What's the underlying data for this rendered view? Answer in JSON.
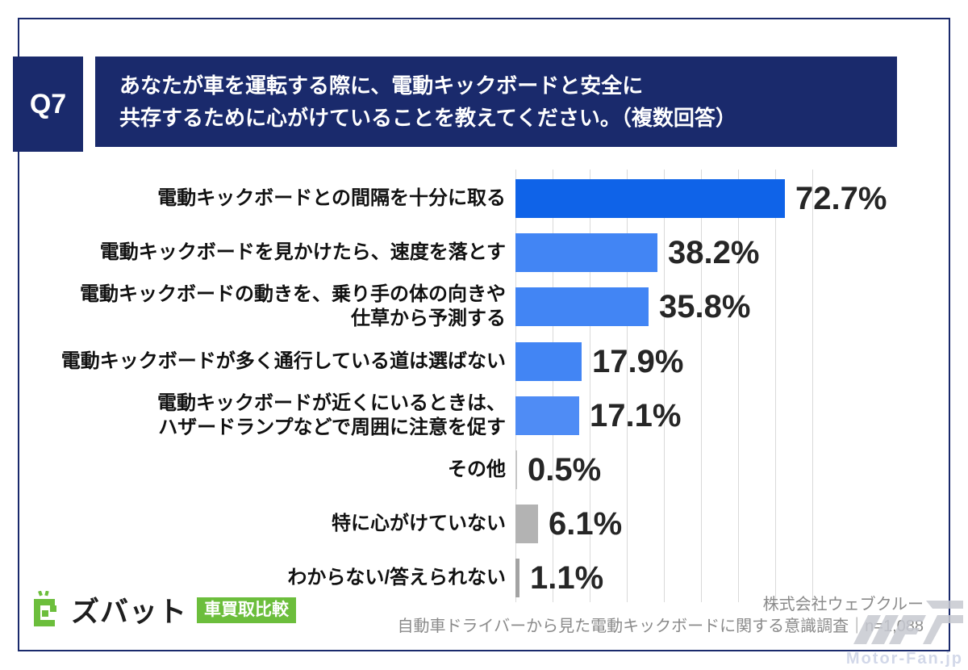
{
  "page": {
    "background": "#ffffff",
    "border_color": "#1a2a6c"
  },
  "question": {
    "number": "Q7",
    "title_line1": "あなたが車を運転する際に、電動キックボードと安全に",
    "title_line2": "共存するために心がけていることを教えてください。（複数回答）",
    "box_color": "#1a2a6c",
    "text_color": "#ffffff"
  },
  "chart_data": {
    "type": "bar",
    "orientation": "horizontal",
    "title": "",
    "categories": [
      "電動キックボードとの間隔を十分に取る",
      "電動キックボードを見かけたら、速度を落とす",
      "電動キックボードの動きを、乗り手の体の向きや\n仕草から予測する",
      "電動キックボードが多く通行している道は選ばない",
      "電動キックボードが近くにいるときは、\nハザードランプなどで周囲に注意を促す",
      "その他",
      "特に心がけていない",
      "わからない/答えられない"
    ],
    "values": [
      72.7,
      38.2,
      35.8,
      17.9,
      17.1,
      0.5,
      6.1,
      1.1
    ],
    "value_labels": [
      "72.7%",
      "38.2%",
      "35.8%",
      "17.9%",
      "17.1%",
      "0.5%",
      "6.1%",
      "1.1%"
    ],
    "bar_colors": [
      "#0f63e8",
      "#4285f4",
      "#4285f4",
      "#4285f4",
      "#4f8cf5",
      "#c6c6c6",
      "#b3b3b3",
      "#a3a3a3"
    ],
    "xlim": [
      0,
      80
    ],
    "grid_step_percent": 10,
    "grid": true,
    "legend": false,
    "grid_color": "#d9d9d9",
    "value_label_color": "#262626"
  },
  "footer": {
    "company": "株式会社ウェブクルー",
    "survey_title": "自動車ドライバーから見た電動キックボードに関する意識調査",
    "separator": "｜",
    "sample_size": "n=1,088"
  },
  "logo": {
    "brand": "ズバット",
    "badge": "車買取比較",
    "green": "#6cbe3c"
  },
  "watermark": {
    "text": "Motor-Fan.jp"
  }
}
